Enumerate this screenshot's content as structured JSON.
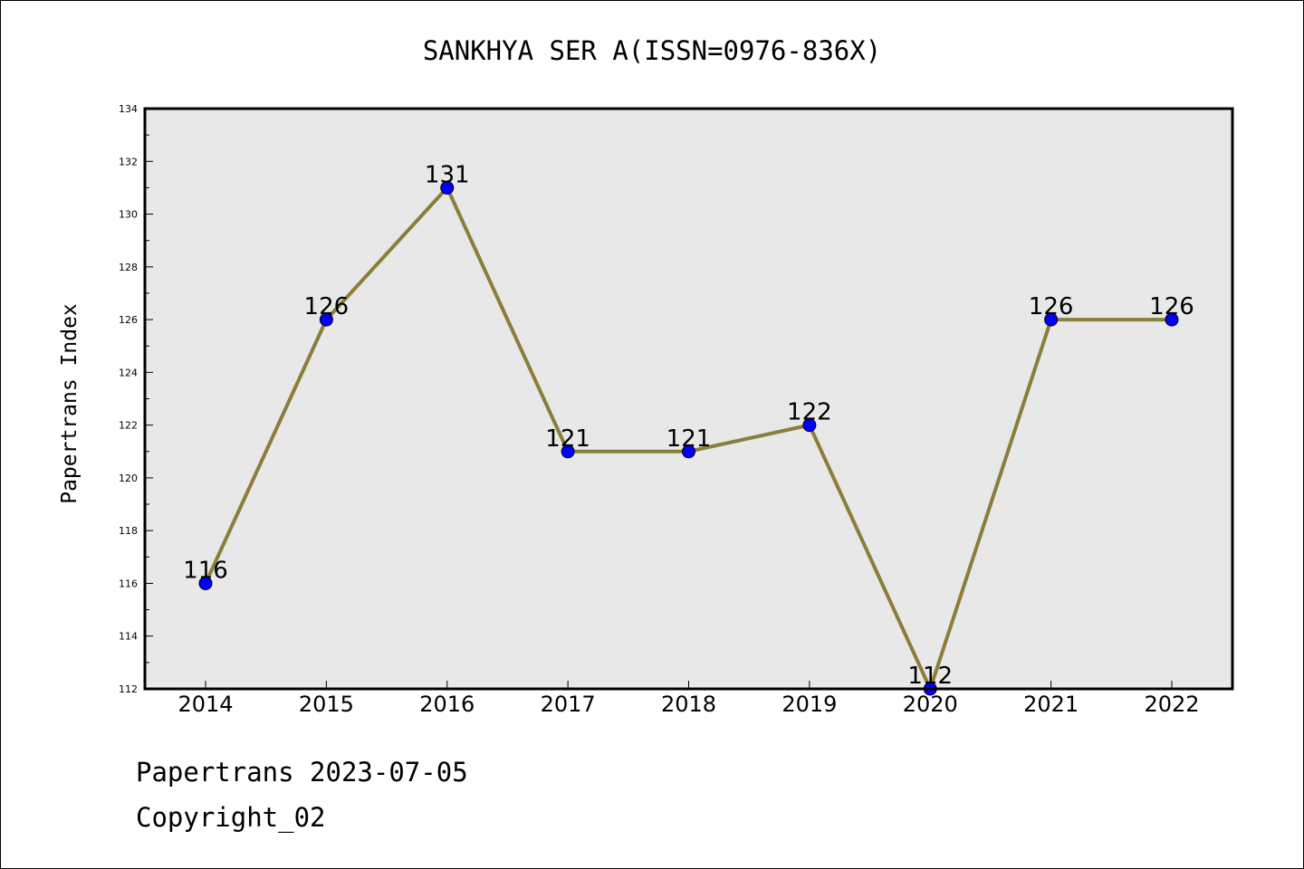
{
  "chart_data": {
    "type": "line",
    "title": "SANKHYA SER A(ISSN=0976-836X)",
    "xlabel": "",
    "ylabel": "Papertrans Index",
    "x": [
      "2014",
      "2015",
      "2016",
      "2017",
      "2018",
      "2019",
      "2020",
      "2021",
      "2022"
    ],
    "series": [
      {
        "values": [
          116,
          126,
          131,
          121,
          121,
          122,
          112,
          126,
          126
        ],
        "data_labels": [
          "116",
          "126",
          "131",
          "121",
          "121",
          "122",
          "112",
          "126",
          "126"
        ]
      }
    ],
    "yticks": [
      "112",
      "114",
      "116",
      "118",
      "120",
      "122",
      "124",
      "126",
      "128",
      "130",
      "132",
      "134"
    ],
    "ylim": [
      112,
      134
    ],
    "grid": false,
    "legend": "none"
  },
  "colors": {
    "line": "#8b7d3a",
    "marker": "#0000ff",
    "plot_background": "#e8e8e8"
  },
  "footer": {
    "date_line": "Papertrans 2023-07-05",
    "copyright_line": "Copyright_02"
  }
}
